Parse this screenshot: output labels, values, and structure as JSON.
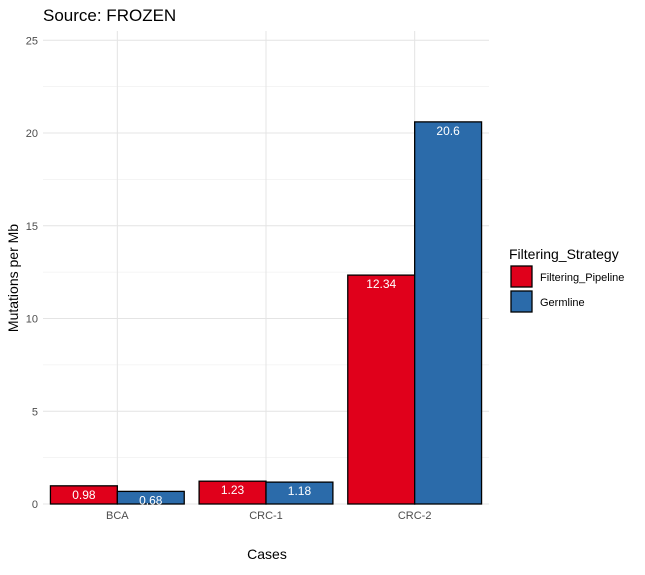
{
  "chart_data": {
    "type": "bar",
    "title": "Source: FROZEN",
    "xlabel": "Cases",
    "ylabel": "Mutations per Mb",
    "categories": [
      "BCA",
      "CRC-1",
      "CRC-2"
    ],
    "series": [
      {
        "name": "Filtering_Pipeline",
        "values": [
          0.98,
          1.23,
          12.34
        ],
        "labels": [
          "0.98",
          "1.23",
          "12.34"
        ],
        "color": "#E0001B"
      },
      {
        "name": "Germline",
        "values": [
          0.68,
          1.18,
          20.6
        ],
        "labels": [
          "0.68",
          "1.18",
          "20.6"
        ],
        "color": "#2B6BAA"
      }
    ],
    "ylim": [
      0,
      25.5
    ],
    "yticks": [
      0,
      5,
      10,
      15,
      20,
      25
    ],
    "grid": true,
    "legend": {
      "title": "Filtering_Strategy",
      "position": "right"
    }
  }
}
